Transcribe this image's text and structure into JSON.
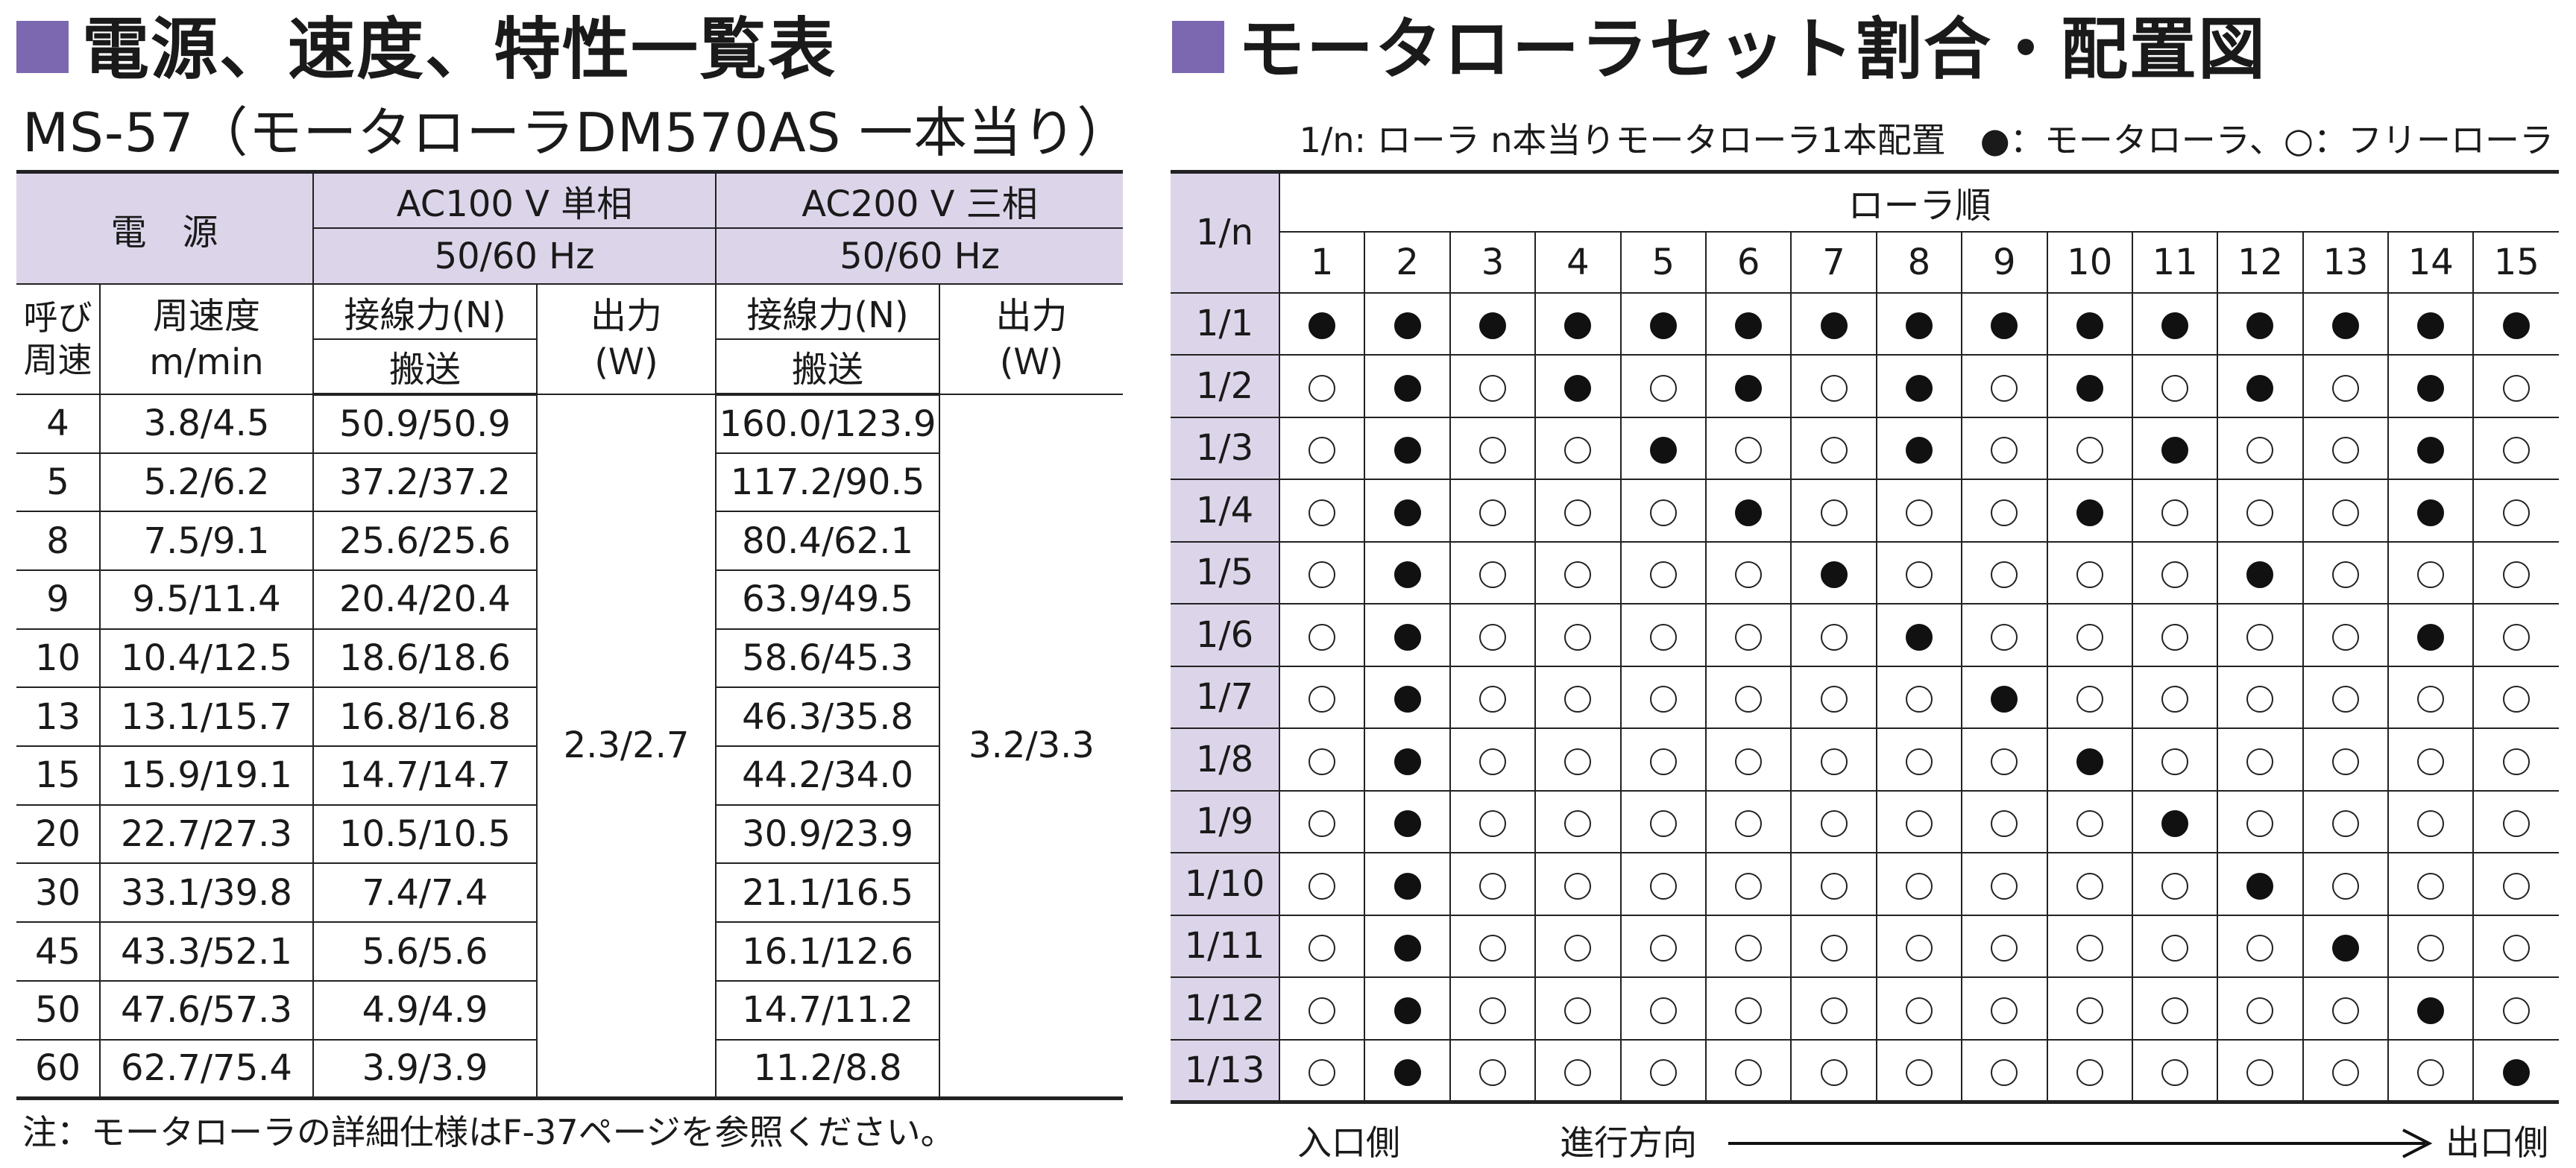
{
  "left_section": {
    "heading": "電源、速度、特性一覧表",
    "model": "MS-57（モータローラDM570AS 一本当り）",
    "table": {
      "power_label": "電　源",
      "ac100_label": "AC100 V 単相",
      "ac100_hz": "50/60 Hz",
      "ac200_label": "AC200 V 三相",
      "ac200_hz": "50/60 Hz",
      "col_code": "呼び周速",
      "col_speed": "周速度m/min",
      "col_force": "接線力(N)",
      "col_conveying": "搬送",
      "col_output": "出力(Ｗ)",
      "output_ac100": "2.3/2.7",
      "output_ac200": "3.2/3.3",
      "rows": [
        {
          "code": "4",
          "speed": "3.8/4.5",
          "force100": "50.9/50.9",
          "force200": "160.0/123.9"
        },
        {
          "code": "5",
          "speed": "5.2/6.2",
          "force100": "37.2/37.2",
          "force200": "117.2/90.5"
        },
        {
          "code": "8",
          "speed": "7.5/9.1",
          "force100": "25.6/25.6",
          "force200": "80.4/62.1"
        },
        {
          "code": "9",
          "speed": "9.5/11.4",
          "force100": "20.4/20.4",
          "force200": "63.9/49.5"
        },
        {
          "code": "10",
          "speed": "10.4/12.5",
          "force100": "18.6/18.6",
          "force200": "58.6/45.3"
        },
        {
          "code": "13",
          "speed": "13.1/15.7",
          "force100": "16.8/16.8",
          "force200": "46.3/35.8"
        },
        {
          "code": "15",
          "speed": "15.9/19.1",
          "force100": "14.7/14.7",
          "force200": "44.2/34.0"
        },
        {
          "code": "20",
          "speed": "22.7/27.3",
          "force100": "10.5/10.5",
          "force200": "30.9/23.9"
        },
        {
          "code": "30",
          "speed": "33.1/39.8",
          "force100": "7.4/7.4",
          "force200": "21.1/16.5"
        },
        {
          "code": "45",
          "speed": "43.3/52.1",
          "force100": "5.6/5.6",
          "force200": "16.1/12.6"
        },
        {
          "code": "50",
          "speed": "47.6/57.3",
          "force100": "4.9/4.9",
          "force200": "14.7/11.2"
        },
        {
          "code": "60",
          "speed": "62.7/75.4",
          "force100": "3.9/3.9",
          "force200": "11.2/8.8"
        }
      ]
    },
    "note": "注：モータローラの詳細仕様はF-37ページを参照ください。"
  },
  "right_section": {
    "heading": "モータローラセット割合・配置図",
    "legend": "1/n: ローラ n本当りモータローラ1本配置　●：モータローラ、○：フリーローラ",
    "grid": {
      "ratio_header": "1/n",
      "order_header": "ローラ順",
      "columns": [
        "1",
        "2",
        "3",
        "4",
        "5",
        "6",
        "7",
        "8",
        "9",
        "10",
        "11",
        "12",
        "13",
        "14",
        "15"
      ],
      "rows": [
        {
          "label": "1/1",
          "motors": [
            1,
            2,
            3,
            4,
            5,
            6,
            7,
            8,
            9,
            10,
            11,
            12,
            13,
            14,
            15
          ]
        },
        {
          "label": "1/2",
          "motors": [
            2,
            4,
            6,
            8,
            10,
            12,
            14
          ]
        },
        {
          "label": "1/3",
          "motors": [
            2,
            5,
            8,
            11,
            14
          ]
        },
        {
          "label": "1/4",
          "motors": [
            2,
            6,
            10,
            14
          ]
        },
        {
          "label": "1/5",
          "motors": [
            2,
            7,
            12
          ]
        },
        {
          "label": "1/6",
          "motors": [
            2,
            8,
            14
          ]
        },
        {
          "label": "1/7",
          "motors": [
            2,
            9
          ]
        },
        {
          "label": "1/8",
          "motors": [
            2,
            10
          ]
        },
        {
          "label": "1/9",
          "motors": [
            2,
            11
          ]
        },
        {
          "label": "1/10",
          "motors": [
            2,
            12
          ]
        },
        {
          "label": "1/11",
          "motors": [
            2,
            13
          ]
        },
        {
          "label": "1/12",
          "motors": [
            2,
            14
          ]
        },
        {
          "label": "1/13",
          "motors": [
            2,
            15
          ]
        }
      ]
    },
    "footer": {
      "inlet": "入口側",
      "direction": "進行方向",
      "outlet": "出口側"
    }
  }
}
